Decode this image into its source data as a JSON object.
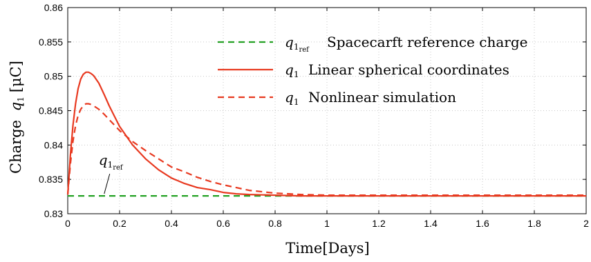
{
  "chart_data": {
    "type": "line",
    "xlabel": "Time[Days]",
    "ylabel": "Charge",
    "ylabel_symbol": "q",
    "ylabel_sub": "1",
    "ylabel_unit": "[μC]",
    "xlim": [
      0,
      2
    ],
    "ylim": [
      0.83,
      0.86
    ],
    "xticks": [
      "0",
      "0.2",
      "0.4",
      "0.6",
      "0.8",
      "1",
      "1.2",
      "1.4",
      "1.6",
      "1.8",
      "2"
    ],
    "yticks": [
      "0.83",
      "0.835",
      "0.84",
      "0.845",
      "0.85",
      "0.855",
      "0.86"
    ],
    "grid": true,
    "legend_position": "top-right",
    "annotation": {
      "symbol": "q",
      "sub": "1",
      "subsub": "ref",
      "x": 0.13,
      "y": 0.8326
    },
    "series": [
      {
        "name": "Spacecarft reference charge",
        "symbol": "q",
        "sub": "1",
        "subsub": "ref",
        "color": "#22a022",
        "style": "dashed",
        "x": [
          0,
          2
        ],
        "y": [
          0.8326,
          0.8326
        ]
      },
      {
        "name": "Linear spherical coordinates",
        "symbol": "q",
        "sub": "1",
        "color": "#e8381f",
        "style": "solid",
        "x": [
          0,
          0.005,
          0.01,
          0.02,
          0.03,
          0.04,
          0.05,
          0.06,
          0.07,
          0.08,
          0.09,
          0.1,
          0.12,
          0.14,
          0.16,
          0.18,
          0.2,
          0.25,
          0.3,
          0.35,
          0.4,
          0.45,
          0.5,
          0.55,
          0.6,
          0.65,
          0.7,
          0.8,
          0.9,
          1.0,
          1.2,
          1.4,
          1.6,
          1.8,
          2.0
        ],
        "y": [
          0.8328,
          0.8355,
          0.8385,
          0.8428,
          0.846,
          0.8482,
          0.8496,
          0.8503,
          0.8506,
          0.8506,
          0.8504,
          0.8501,
          0.849,
          0.8474,
          0.8457,
          0.8442,
          0.8427,
          0.84,
          0.838,
          0.8364,
          0.8352,
          0.8344,
          0.8338,
          0.8335,
          0.8331,
          0.8329,
          0.8328,
          0.8327,
          0.8326,
          0.8326,
          0.8326,
          0.8326,
          0.8326,
          0.8326,
          0.8326
        ]
      },
      {
        "name": "Nonlinear simulation",
        "symbol": "q",
        "sub": "1",
        "color": "#e8381f",
        "style": "dashed",
        "x": [
          0,
          0.005,
          0.01,
          0.02,
          0.03,
          0.04,
          0.05,
          0.06,
          0.07,
          0.08,
          0.09,
          0.1,
          0.12,
          0.14,
          0.16,
          0.18,
          0.2,
          0.25,
          0.3,
          0.35,
          0.4,
          0.45,
          0.5,
          0.55,
          0.6,
          0.65,
          0.7,
          0.75,
          0.8,
          0.9,
          1.0,
          1.2,
          1.4,
          1.6,
          1.8,
          2.0
        ],
        "y": [
          0.8328,
          0.835,
          0.8372,
          0.8405,
          0.8428,
          0.8443,
          0.8452,
          0.8457,
          0.846,
          0.846,
          0.8459,
          0.8457,
          0.8452,
          0.8445,
          0.8437,
          0.8429,
          0.8421,
          0.8405,
          0.8392,
          0.838,
          0.8368,
          0.8361,
          0.8353,
          0.8347,
          0.8342,
          0.8338,
          0.8334,
          0.8332,
          0.833,
          0.8328,
          0.8327,
          0.8327,
          0.8327,
          0.8327,
          0.8327,
          0.8327
        ]
      }
    ]
  }
}
